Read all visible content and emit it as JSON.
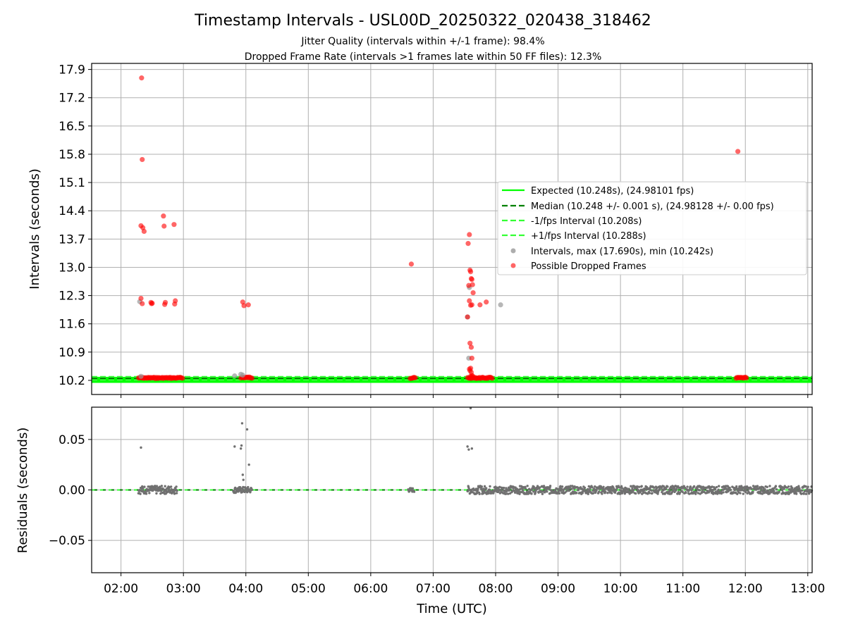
{
  "chart_data": [
    {
      "type": "scatter",
      "title": "Timestamp Intervals - USL00D_20250322_020438_318462",
      "subtitle_lines": [
        "Jitter Quality (intervals within +/-1 frame): 98.4%",
        "Dropped Frame Rate (intervals >1 frames late within 50 FF files): 12.3%"
      ],
      "xlabel": "",
      "ylabel": "Intervals (seconds)",
      "xlim_hours": [
        1.53,
        13.07
      ],
      "ylim": [
        9.85,
        18.05
      ],
      "yticks": [
        "10.2",
        "10.9",
        "11.6",
        "12.3",
        "13.0",
        "13.7",
        "14.4",
        "15.1",
        "15.8",
        "16.5",
        "17.2",
        "17.9"
      ],
      "grid": true,
      "legend_position": "center-right",
      "lines": [
        {
          "name": "Expected (10.248s), (24.98101 fps)",
          "y": 10.248,
          "style": "solid",
          "color": "#00ff00"
        },
        {
          "name": "Median (10.248 +/- 0.001 s), (24.98128 +/- 0.00 fps)",
          "y": 10.248,
          "style": "dashed",
          "color": "#008000"
        },
        {
          "name": "-1/fps Interval (10.208s)",
          "y": 10.208,
          "style": "dashed",
          "color": "#33ff33"
        },
        {
          "name": "+1/fps Interval (10.288s)",
          "y": 10.288,
          "style": "dashed",
          "color": "#33ff33"
        }
      ],
      "series": [
        {
          "name": "Intervals, max (17.690s), min (10.242s)",
          "color": "#999999",
          "x": [
            2.3,
            2.32,
            3.82,
            3.92,
            3.95,
            7.55,
            7.57,
            7.58,
            8.08
          ],
          "y": [
            12.15,
            10.3,
            10.31,
            10.35,
            10.33,
            11.77,
            10.75,
            12.5,
            12.07
          ]
        },
        {
          "name": "Possible Dropped Frames",
          "color": "#ff0000",
          "x": [
            2.33,
            2.34,
            2.32,
            2.35,
            2.37,
            2.32,
            2.34,
            2.48,
            2.49,
            2.5,
            2.68,
            2.69,
            2.7,
            2.71,
            2.85,
            2.86,
            2.87,
            3.95,
            3.97,
            4.04,
            6.65,
            7.56,
            7.58,
            7.59,
            7.6,
            7.61,
            7.62,
            7.63,
            7.64,
            7.57,
            7.58,
            7.6,
            7.62,
            7.55,
            7.59,
            7.61,
            7.62,
            7.58,
            7.59,
            7.6,
            7.61,
            7.6,
            7.63,
            7.62,
            7.75,
            7.85,
            11.88
          ],
          "y": [
            17.69,
            15.67,
            14.03,
            13.98,
            13.89,
            12.23,
            12.1,
            12.13,
            12.1,
            12.11,
            14.27,
            14.02,
            12.08,
            12.13,
            14.06,
            12.09,
            12.17,
            12.14,
            12.05,
            12.07,
            13.08,
            13.59,
            13.81,
            12.93,
            12.89,
            12.72,
            12.7,
            12.57,
            12.37,
            12.55,
            12.17,
            12.06,
            12.07,
            11.77,
            11.12,
            11.02,
            10.75,
            10.48,
            10.44,
            10.5,
            10.4,
            10.3,
            10.31,
            10.32,
            12.07,
            12.14,
            15.87
          ]
        }
      ],
      "dense_bands": [
        {
          "series": "Possible Dropped Frames",
          "x_from": 2.28,
          "x_to": 3.0,
          "y": 10.26
        },
        {
          "series": "Possible Dropped Frames",
          "x_from": 3.92,
          "x_to": 4.1,
          "y": 10.27
        },
        {
          "series": "Possible Dropped Frames",
          "x_from": 6.63,
          "x_to": 6.72,
          "y": 10.26
        },
        {
          "series": "Possible Dropped Frames",
          "x_from": 7.55,
          "x_to": 7.95,
          "y": 10.26
        },
        {
          "series": "Possible Dropped Frames",
          "x_from": 11.85,
          "x_to": 12.02,
          "y": 10.26
        }
      ]
    },
    {
      "type": "scatter",
      "xlabel": "Time (UTC)",
      "ylabel": "Residuals (seconds)",
      "xlim_hours": [
        1.53,
        13.07
      ],
      "ylim": [
        -0.082,
        0.082
      ],
      "yticks": [
        "0.05",
        "0.00",
        "−0.05"
      ],
      "xticks": [
        "02:00",
        "03:00",
        "04:00",
        "05:00",
        "06:00",
        "07:00",
        "08:00",
        "09:00",
        "10:00",
        "11:00",
        "12:00",
        "13:00"
      ],
      "grid": true,
      "lines": [
        {
          "name": "Median",
          "y": 0.0,
          "style": "dashed",
          "color": "#008000"
        },
        {
          "name": "Expected",
          "y": 0.0,
          "style": "dashed",
          "color": "#33ff33"
        }
      ],
      "series": [
        {
          "name": "Residuals",
          "color": "#707070",
          "x": [
            2.32,
            3.82,
            3.92,
            3.93,
            3.94,
            3.95,
            3.96,
            4.02,
            4.05,
            7.55,
            7.57,
            7.62,
            7.6
          ],
          "y": [
            0.042,
            0.043,
            0.041,
            0.044,
            0.066,
            0.015,
            0.01,
            0.06,
            0.025,
            0.043,
            0.04,
            0.041,
            0.081
          ]
        }
      ],
      "dense_bands": [
        {
          "x_from": 2.28,
          "x_to": 2.9,
          "y_spread": 0.004
        },
        {
          "x_from": 3.8,
          "x_to": 4.1,
          "y_spread": 0.003
        },
        {
          "x_from": 6.6,
          "x_to": 6.7,
          "y_spread": 0.002
        },
        {
          "x_from": 7.55,
          "x_to": 13.07,
          "y_spread": 0.004
        }
      ]
    }
  ]
}
